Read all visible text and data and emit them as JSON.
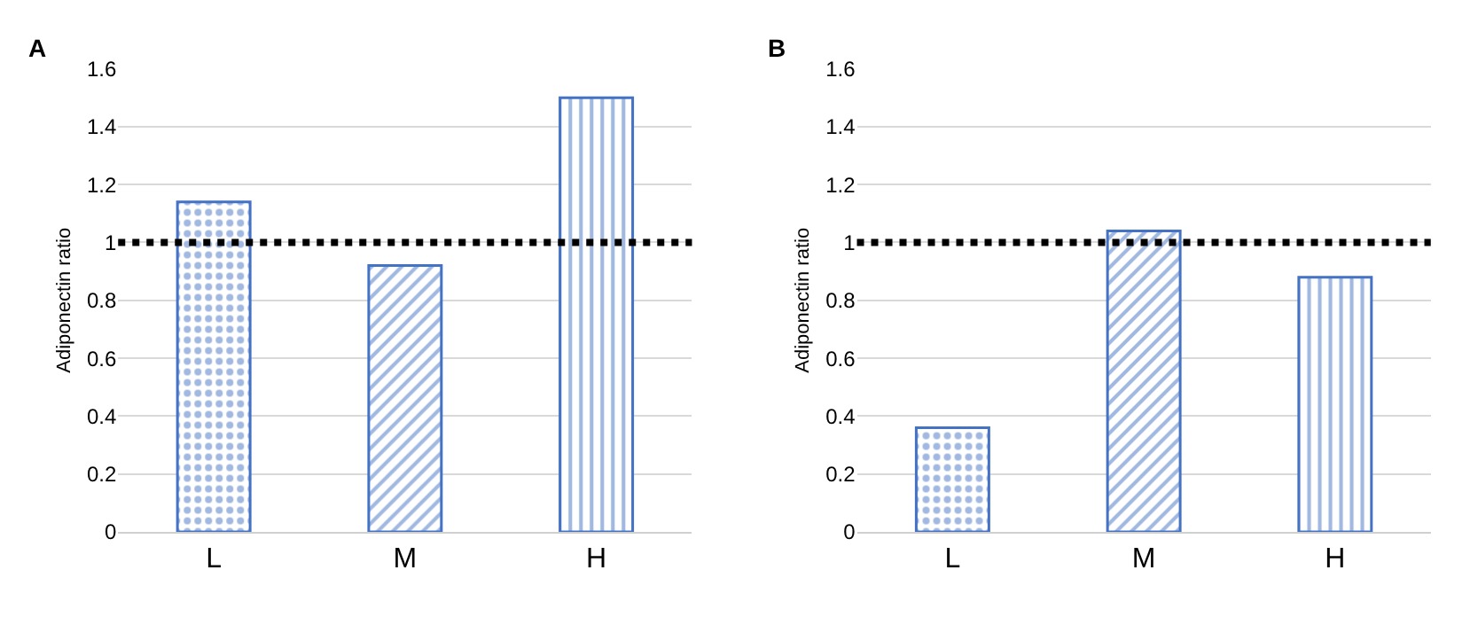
{
  "chart_data": [
    {
      "type": "bar",
      "title": "A",
      "ylabel": "Adiponectin ratio",
      "categories": [
        "L",
        "M",
        "H"
      ],
      "series": [
        {
          "color": "#4472c4",
          "values": [
            1.14,
            0.92,
            1.5
          ]
        }
      ],
      "ylim": [
        0,
        1.6
      ],
      "yticks": [
        0,
        0.2,
        0.4,
        0.6,
        0.8,
        1,
        1.2,
        1.4,
        1.6
      ],
      "grid": "y",
      "ref_lines": [
        {
          "axis": "y",
          "value": 1,
          "color": "#000000",
          "line_style": "dotted"
        }
      ]
    },
    {
      "type": "bar",
      "title": "B",
      "ylabel": "Adiponectin ratio",
      "categories": [
        "L",
        "M",
        "H"
      ],
      "series": [
        {
          "color": "#4472c4",
          "values": [
            0.36,
            1.04,
            0.88
          ]
        }
      ],
      "ylim": [
        0,
        1.6
      ],
      "yticks": [
        0,
        0.2,
        0.4,
        0.6,
        0.8,
        1,
        1.2,
        1.4,
        1.6
      ],
      "grid": "y",
      "ref_lines": [
        {
          "axis": "y",
          "value": 1,
          "color": "#000000",
          "line_style": "dotted"
        }
      ]
    }
  ]
}
